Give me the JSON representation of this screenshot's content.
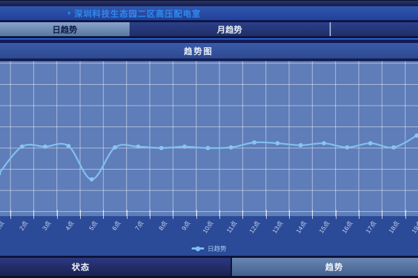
{
  "header": {
    "station_selector": {
      "caret_glyph": "▾",
      "label": "深圳科技生态园二区高压配电室"
    }
  },
  "tabs": [
    {
      "label": "日趋势",
      "active": true
    },
    {
      "label": "月趋势",
      "active": false
    },
    {
      "label": "",
      "active": false
    }
  ],
  "panel": {
    "title": "趋势图"
  },
  "chart_data": {
    "type": "line",
    "title": "趋势图",
    "categories": [
      "1点",
      "2点",
      "3点",
      "4点",
      "5点",
      "6点",
      "7点",
      "8点",
      "9点",
      "10点",
      "11点",
      "12点",
      "13点",
      "14点",
      "15点",
      "16点",
      "17点",
      "18点",
      "19点"
    ],
    "series": [
      {
        "name": "日趋势",
        "color": "#80bfee",
        "marker_color": "#8ac4f0",
        "values": [
          27.0,
          44.6,
          44.6,
          45.0,
          23.4,
          44.1,
          44.6,
          43.7,
          44.6,
          43.7,
          44.1,
          47.3,
          46.8,
          45.5,
          46.8,
          44.1,
          46.8,
          44.1,
          51.8
        ]
      }
    ],
    "xlabel": "",
    "ylabel": "",
    "ylim": [
      0,
      100
    ],
    "y_axis_labels_visible": false,
    "x_labels_rotated": true,
    "grid": true,
    "grid_color": "rgba(255,255,255,0.5)",
    "plot_background": "#5e7db9",
    "legend_position": "bottom",
    "smooth": true
  },
  "legend": {
    "items": [
      {
        "label": "日趋势",
        "color": "#7ec0f0"
      }
    ]
  },
  "footer": {
    "buttons": [
      {
        "label": "状态"
      },
      {
        "label": "趋势"
      }
    ]
  },
  "colors": {
    "accent_text": "#2f8af0",
    "chrome_dark": "#0c1340",
    "panel_blue": "#2c4a92",
    "lower_blue": "#2b4a97",
    "active_tab": "#6d8cba",
    "blue_rule": "#2e63cc"
  }
}
